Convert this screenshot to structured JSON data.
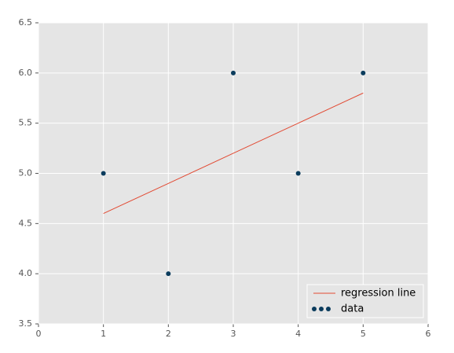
{
  "chart_data": {
    "type": "scatter",
    "xlim": [
      0,
      6
    ],
    "xticks": [
      0,
      1,
      2,
      3,
      4,
      5,
      6
    ],
    "ylim": [
      3.5,
      6.5
    ],
    "yticks": [
      3.5,
      {
        "value": 4,
        "label": "4.0"
      },
      4.5,
      {
        "value": 5,
        "label": "5.0"
      },
      5.5,
      {
        "value": 6,
        "label": "6.0"
      },
      6.5
    ],
    "grid": true,
    "legend": "lower right",
    "series": [
      {
        "name": "regression line",
        "type": "line",
        "color": "#e24a33",
        "x": [
          1,
          2,
          3,
          4,
          5
        ],
        "values": [
          4.6,
          4.9,
          5.2,
          5.5,
          5.8
        ]
      },
      {
        "name": "data",
        "type": "scatter",
        "color": "#0b3c5d",
        "x": [
          1,
          2,
          3,
          4,
          5
        ],
        "values": [
          5,
          4,
          6,
          5,
          6
        ]
      }
    ]
  }
}
